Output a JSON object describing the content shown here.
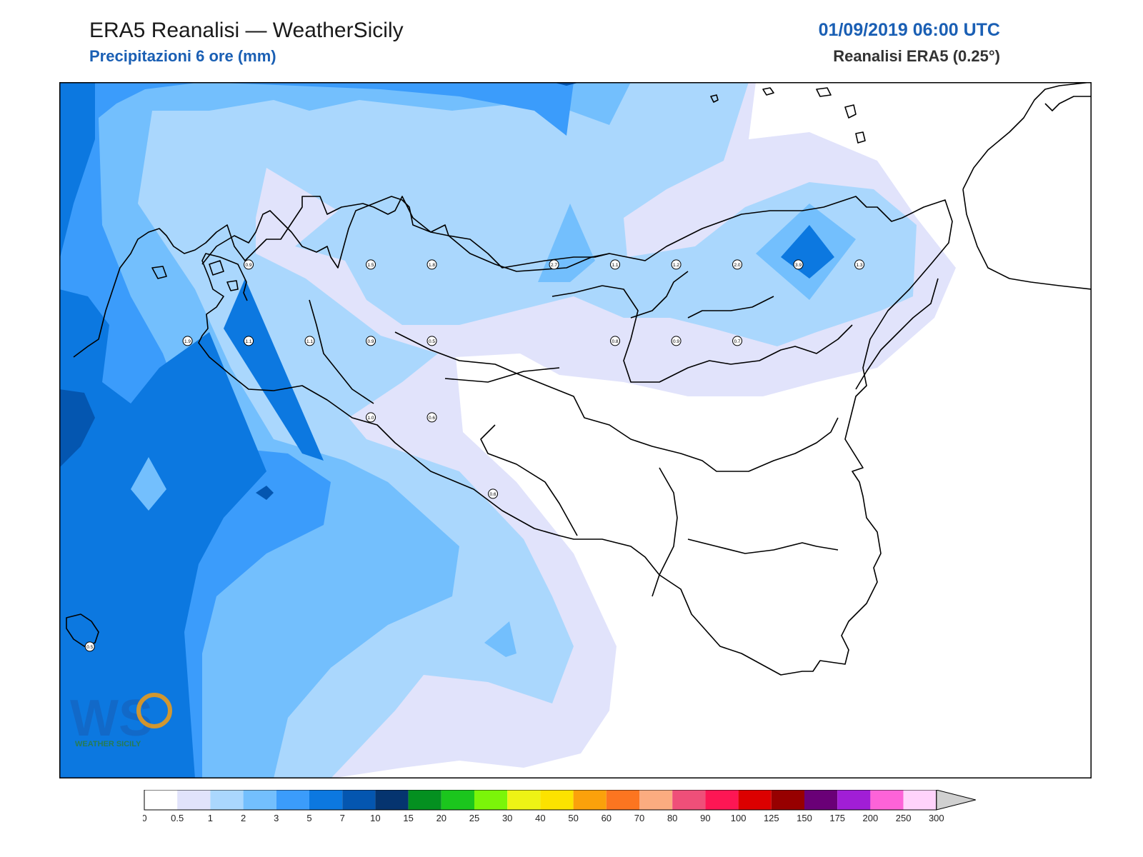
{
  "header": {
    "title": "ERA5 Reanalisi — WeatherSicily",
    "subtitle": "Precipitazioni 6 ore (mm)",
    "datetime": "01/09/2019 06:00 UTC",
    "source": "Reanalisi ERA5 (0.25°)"
  },
  "logo": {
    "text": "WEATHER SICILY",
    "mark": "WS"
  },
  "colorbar": {
    "ticks": [
      "0",
      "0.5",
      "1",
      "2",
      "3",
      "5",
      "7",
      "10",
      "15",
      "20",
      "25",
      "30",
      "40",
      "50",
      "60",
      "70",
      "80",
      "90",
      "100",
      "125",
      "150",
      "175",
      "200",
      "250",
      "300"
    ],
    "colors": [
      "#ffffff",
      "#e1e3fb",
      "#aad7fd",
      "#73bffd",
      "#3b9cfb",
      "#0c78e0",
      "#0456b0",
      "#05346f",
      "#049020",
      "#1bc61d",
      "#7bf509",
      "#eef315",
      "#fce200",
      "#fba10b",
      "#fc7520",
      "#fbac80",
      "#ef4f79",
      "#fd1654",
      "#dc0000",
      "#970000",
      "#6a0077",
      "#a11ed6",
      "#fd63d8",
      "#ffd3fb"
    ],
    "over_color": "#d0d0d0"
  },
  "stations": [
    {
      "value": "0.9",
      "lon": 12.6,
      "lat": 38.2
    },
    {
      "value": "1.5",
      "lon": 13.1,
      "lat": 38.2
    },
    {
      "value": "1.8",
      "lon": 13.35,
      "lat": 38.2
    },
    {
      "value": "2.7",
      "lon": 13.85,
      "lat": 38.2
    },
    {
      "value": "1.1",
      "lon": 14.1,
      "lat": 38.2
    },
    {
      "value": "1.2",
      "lon": 14.35,
      "lat": 38.2
    },
    {
      "value": "2.0",
      "lon": 14.6,
      "lat": 38.2
    },
    {
      "value": "3.9",
      "lon": 14.85,
      "lat": 38.2
    },
    {
      "value": "1.3",
      "lon": 15.1,
      "lat": 38.2
    },
    {
      "value": "1.9",
      "lon": 12.35,
      "lat": 37.95
    },
    {
      "value": "1.1",
      "lon": 12.6,
      "lat": 37.95
    },
    {
      "value": "1.1",
      "lon": 12.85,
      "lat": 37.95
    },
    {
      "value": "0.9",
      "lon": 13.1,
      "lat": 37.95
    },
    {
      "value": "0.5",
      "lon": 13.35,
      "lat": 37.95
    },
    {
      "value": "0.8",
      "lon": 14.1,
      "lat": 37.95
    },
    {
      "value": "0.9",
      "lon": 14.35,
      "lat": 37.95
    },
    {
      "value": "0.7",
      "lon": 14.6,
      "lat": 37.95
    },
    {
      "value": "1.0",
      "lon": 13.1,
      "lat": 37.7
    },
    {
      "value": "0.6",
      "lon": 13.35,
      "lat": 37.7
    },
    {
      "value": "0.6",
      "lon": 13.6,
      "lat": 37.45
    },
    {
      "value": "0.5",
      "lon": 11.95,
      "lat": 36.95
    }
  ]
}
